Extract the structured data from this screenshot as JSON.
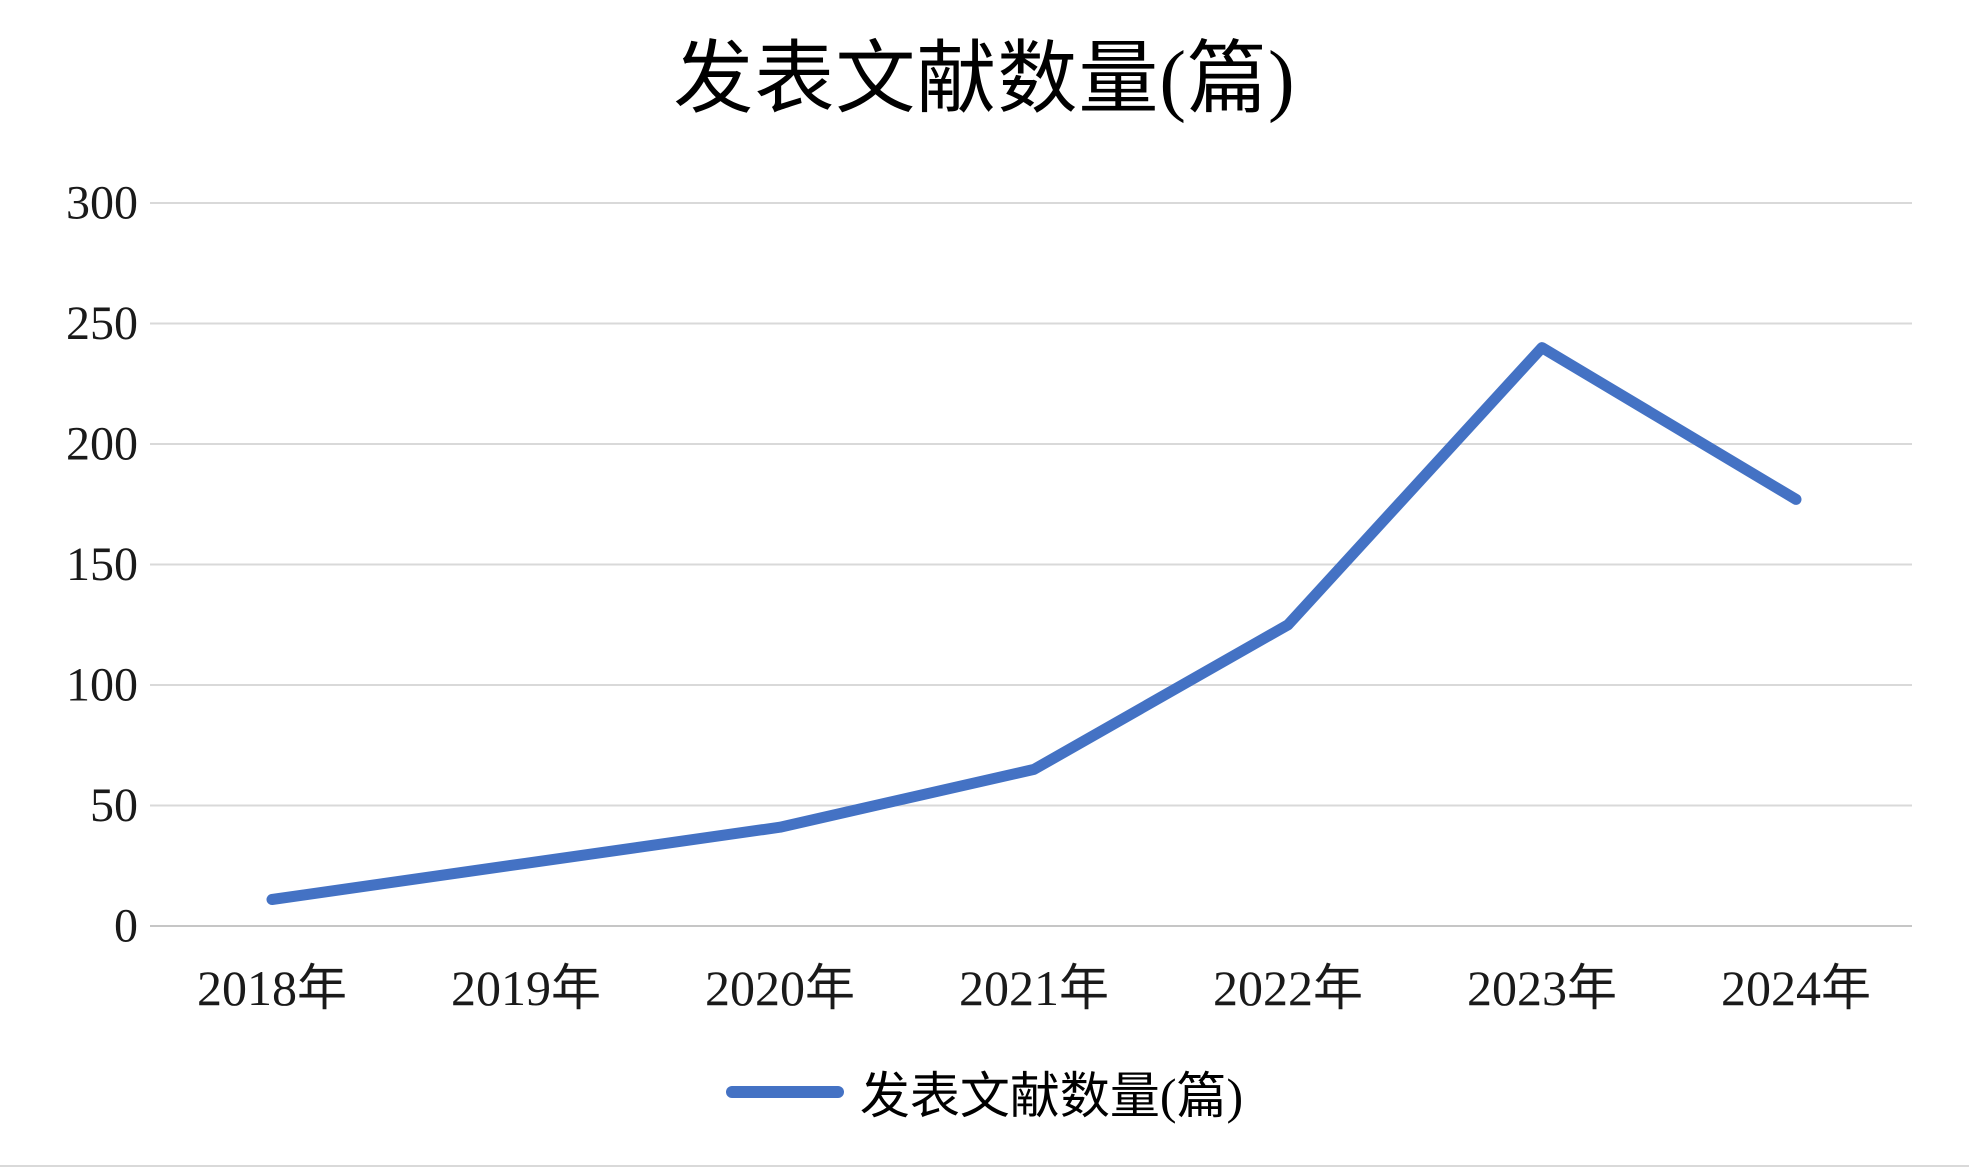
{
  "page": {
    "background": "#ffffff"
  },
  "chart_data": {
    "type": "line",
    "title": "发表文献数量(篇)",
    "categories": [
      "2018年",
      "2019年",
      "2020年",
      "2021年",
      "2022年",
      "2023年",
      "2024年"
    ],
    "series": [
      {
        "name": "发表文献数量(篇)",
        "values": [
          11,
          26,
          41,
          65,
          125,
          240,
          177
        ]
      }
    ],
    "xlabel": "",
    "ylabel": "",
    "ylim": [
      0,
      300
    ],
    "ytick_interval": 50,
    "yticks": [
      0,
      50,
      100,
      150,
      200,
      250,
      300
    ],
    "grid": true,
    "legend": {
      "position": "bottom",
      "label": "发表文献数量(篇)"
    },
    "colors": {
      "line": "#4472C4",
      "grid": "#d9d9d9",
      "zero_line": "#c6c6c6",
      "text": "#1a1a1a"
    }
  }
}
